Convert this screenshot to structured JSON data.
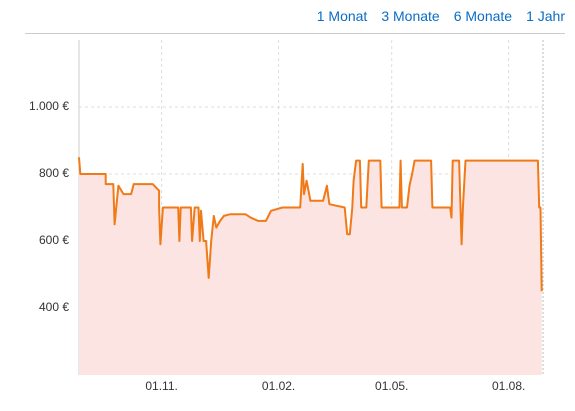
{
  "links": [
    "1 Monat",
    "3 Monate",
    "6 Monate",
    "1 Jahr"
  ],
  "chart_data": {
    "type": "line",
    "color": "#f07a18",
    "fill": "#fbe4e1",
    "x": [
      "28.08.",
      "29.08.",
      "18.09.",
      "18.09.",
      "24.09.",
      "25.09.",
      "28.09.",
      "02.10.",
      "08.10.",
      "10.10.",
      "25.10.",
      "30.10.",
      "30.10.",
      "31.10.",
      "02.11.",
      "14.11.",
      "15.11.",
      "16.11.",
      "24.11.",
      "25.11.",
      "27.11.",
      "30.11.",
      "01.12.",
      "02.12.",
      "04.12.",
      "06.12.",
      "08.12.",
      "10.12.",
      "12.12.",
      "14.12.",
      "17.12.",
      "20.12.",
      "25.12.",
      "06.01.",
      "10.01.",
      "16.01.",
      "22.01.",
      "26.01.",
      "04.02.",
      "18.02.",
      "20.02.",
      "21.02.",
      "23.02.",
      "26.02.",
      "03.03.",
      "08.03.",
      "11.03.",
      "13.03.",
      "25.03.",
      "27.03.",
      "29.03.",
      "31.03.",
      "01.04.",
      "03.04.",
      "06.04.",
      "07.04.",
      "11.04.",
      "13.04.",
      "22.04.",
      "23.04.",
      "07.05.",
      "08.05.",
      "09.05.",
      "13.05.",
      "15.05.",
      "17.05.",
      "19.05.",
      "01.06.",
      "02.06.",
      "16.06.",
      "17.06.",
      "18.06.",
      "23.06.",
      "25.06.",
      "26.06.",
      "28.06.",
      "24.08.",
      "25.08.",
      "26.08.",
      "27.08."
    ],
    "values": [
      850,
      800,
      800,
      770,
      770,
      650,
      765,
      740,
      740,
      770,
      770,
      750,
      700,
      590,
      700,
      700,
      600,
      700,
      700,
      600,
      700,
      700,
      600,
      690,
      600,
      600,
      490,
      600,
      675,
      640,
      660,
      675,
      680,
      680,
      670,
      660,
      660,
      690,
      700,
      700,
      830,
      740,
      780,
      720,
      720,
      720,
      765,
      710,
      700,
      620,
      620,
      700,
      780,
      840,
      840,
      700,
      700,
      840,
      840,
      700,
      700,
      840,
      700,
      700,
      765,
      800,
      840,
      840,
      700,
      700,
      670,
      840,
      840,
      590,
      700,
      840,
      840,
      700,
      700,
      450
    ],
    "xlim": [
      "28.08.",
      "28.08."
    ],
    "xticks": [
      "01.11.",
      "01.02.",
      "01.05.",
      "01.08."
    ],
    "ylim": [
      200,
      1200
    ],
    "yticks": [
      {
        "value": 400,
        "label": "400 €"
      },
      {
        "value": 600,
        "label": "600 €"
      },
      {
        "value": 800,
        "label": "800 €"
      },
      {
        "value": 1000,
        "label": "1.000 €"
      }
    ],
    "grid": true
  }
}
